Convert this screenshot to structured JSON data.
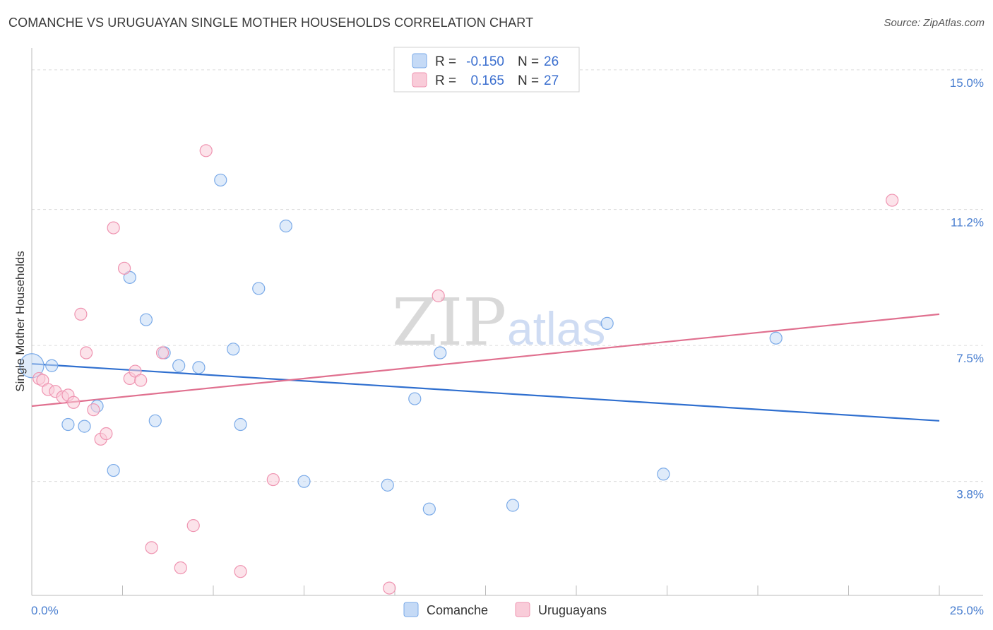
{
  "header": {
    "title": "COMANCHE VS URUGUAYAN SINGLE MOTHER HOUSEHOLDS CORRELATION CHART",
    "source": "Source: ZipAtlas.com"
  },
  "watermark": {
    "zip": "ZIP",
    "atlas": "atlas"
  },
  "chart_data": {
    "type": "scatter",
    "title": "COMANCHE VS URUGUAYAN SINGLE MOTHER HOUSEHOLDS CORRELATION CHART",
    "xlabel": "",
    "ylabel": "Single Mother Households",
    "xlim": [
      0,
      25
    ],
    "ylim": [
      0.7,
      15.4
    ],
    "x_tick_labels": [
      "0.0%",
      "25.0%"
    ],
    "y_ticks": [
      {
        "value": 15.0,
        "label": "15.0%"
      },
      {
        "value": 11.2,
        "label": "11.2%"
      },
      {
        "value": 7.5,
        "label": "7.5%"
      },
      {
        "value": 3.8,
        "label": "3.8%"
      }
    ],
    "legend": {
      "r_label": "R =",
      "n_label": "N =",
      "entries": [
        {
          "name": "Comanche",
          "r": "-0.150",
          "n": "26",
          "color": "#7aaae8",
          "fill": "#c5daf6"
        },
        {
          "name": "Uruguayans",
          "r": "0.165",
          "n": "27",
          "color": "#ef94b1",
          "fill": "#f9ccd9"
        }
      ]
    },
    "series": [
      {
        "name": "Comanche",
        "color": "#7aaae8",
        "fill": "#c5daf6",
        "trend": {
          "x": [
            0,
            25
          ],
          "y": [
            7.0,
            5.45
          ],
          "color": "#2f6fcf"
        },
        "points": [
          {
            "x": 0.0,
            "y": 6.95,
            "big": true
          },
          {
            "x": 0.55,
            "y": 6.95
          },
          {
            "x": 1.0,
            "y": 5.35
          },
          {
            "x": 1.45,
            "y": 5.3
          },
          {
            "x": 1.8,
            "y": 5.85
          },
          {
            "x": 2.25,
            "y": 4.1
          },
          {
            "x": 2.7,
            "y": 9.35
          },
          {
            "x": 3.15,
            "y": 8.2
          },
          {
            "x": 3.4,
            "y": 5.45
          },
          {
            "x": 3.65,
            "y": 7.3
          },
          {
            "x": 4.05,
            "y": 6.95
          },
          {
            "x": 4.6,
            "y": 6.9
          },
          {
            "x": 5.2,
            "y": 12.0
          },
          {
            "x": 5.55,
            "y": 7.4
          },
          {
            "x": 5.75,
            "y": 5.35
          },
          {
            "x": 6.25,
            "y": 9.05
          },
          {
            "x": 7.0,
            "y": 10.75
          },
          {
            "x": 7.5,
            "y": 3.8
          },
          {
            "x": 9.8,
            "y": 3.7
          },
          {
            "x": 10.55,
            "y": 6.05
          },
          {
            "x": 10.95,
            "y": 3.05
          },
          {
            "x": 11.25,
            "y": 7.3
          },
          {
            "x": 13.25,
            "y": 3.15
          },
          {
            "x": 15.85,
            "y": 8.1
          },
          {
            "x": 17.4,
            "y": 4.0
          },
          {
            "x": 20.5,
            "y": 7.7
          }
        ]
      },
      {
        "name": "Uruguayans",
        "color": "#ef94b1",
        "fill": "#f9ccd9",
        "trend": {
          "x": [
            0,
            25
          ],
          "y": [
            5.85,
            8.35
          ],
          "color": "#e0708f"
        },
        "points": [
          {
            "x": 0.2,
            "y": 6.6
          },
          {
            "x": 0.3,
            "y": 6.55
          },
          {
            "x": 0.45,
            "y": 6.3
          },
          {
            "x": 0.65,
            "y": 6.25
          },
          {
            "x": 0.85,
            "y": 6.1
          },
          {
            "x": 1.0,
            "y": 6.15
          },
          {
            "x": 1.15,
            "y": 5.95
          },
          {
            "x": 1.35,
            "y": 8.35
          },
          {
            "x": 1.5,
            "y": 7.3
          },
          {
            "x": 1.7,
            "y": 5.75
          },
          {
            "x": 1.9,
            "y": 4.95
          },
          {
            "x": 2.05,
            "y": 5.1
          },
          {
            "x": 2.25,
            "y": 10.7
          },
          {
            "x": 2.55,
            "y": 9.6
          },
          {
            "x": 2.7,
            "y": 6.6
          },
          {
            "x": 2.85,
            "y": 6.8
          },
          {
            "x": 3.0,
            "y": 6.55
          },
          {
            "x": 3.3,
            "y": 2.0
          },
          {
            "x": 3.6,
            "y": 7.3
          },
          {
            "x": 4.1,
            "y": 1.45
          },
          {
            "x": 4.45,
            "y": 2.6
          },
          {
            "x": 4.8,
            "y": 12.8
          },
          {
            "x": 5.75,
            "y": 1.35
          },
          {
            "x": 6.65,
            "y": 3.85
          },
          {
            "x": 9.85,
            "y": 0.9
          },
          {
            "x": 11.2,
            "y": 8.85
          },
          {
            "x": 23.7,
            "y": 11.45
          }
        ]
      }
    ]
  }
}
